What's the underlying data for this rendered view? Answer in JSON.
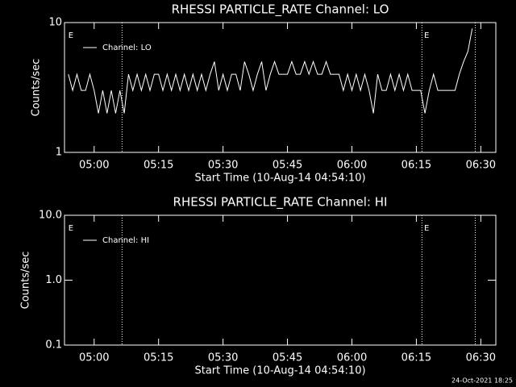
{
  "chart_data": [
    {
      "type": "line",
      "title": "RHESSI PARTICLE_RATE Channel: LO",
      "xlabel": "Start Time (10-Aug-14 04:54:10)",
      "ylabel": "Counts/sec",
      "log_y": true,
      "ylim": [
        1,
        10
      ],
      "yticks": [
        1,
        10
      ],
      "xlim": [
        293.1,
        393.5
      ],
      "xticks": [
        {
          "value": 300,
          "label": "05:00"
        },
        {
          "value": 315,
          "label": "05:15"
        },
        {
          "value": 330,
          "label": "05:30"
        },
        {
          "value": 345,
          "label": "05:45"
        },
        {
          "value": 360,
          "label": "06:00"
        },
        {
          "value": 375,
          "label": "06:15"
        },
        {
          "value": 390,
          "label": "06:30"
        }
      ],
      "vlines": [
        306.5,
        376.3,
        388.7
      ],
      "annotations": [
        {
          "text": "E",
          "x": 293.8
        },
        {
          "text": "E",
          "x": 376.6
        }
      ],
      "legend": "upper left",
      "x": [
        294,
        295,
        296,
        297,
        298,
        299,
        300,
        301,
        302,
        303,
        304,
        305,
        306,
        307,
        308,
        309,
        310,
        311,
        312,
        313,
        314,
        315,
        316,
        317,
        318,
        319,
        320,
        321,
        322,
        323,
        324,
        325,
        326,
        327,
        328,
        329,
        330,
        331,
        332,
        333,
        334,
        335,
        336,
        337,
        338,
        339,
        340,
        341,
        342,
        343,
        344,
        345,
        346,
        347,
        348,
        349,
        350,
        351,
        352,
        353,
        354,
        355,
        356,
        357,
        358,
        359,
        360,
        361,
        362,
        363,
        364,
        365,
        366,
        367,
        368,
        369,
        370,
        371,
        372,
        373,
        374,
        375,
        376,
        377,
        378,
        379,
        380,
        381,
        382,
        383,
        384,
        385,
        386,
        387,
        388
      ],
      "series": [
        {
          "name": "Channel: LO",
          "color": "#ffffff",
          "values": [
            4,
            3,
            4,
            3,
            3,
            4,
            3,
            2,
            3,
            2,
            3,
            2,
            3,
            2,
            4,
            3,
            4,
            3,
            4,
            3,
            4,
            4,
            3,
            4,
            3,
            4,
            3,
            4,
            3,
            4,
            3,
            4,
            3,
            4,
            5,
            3,
            4,
            3,
            4,
            4,
            3,
            5,
            4,
            3,
            4,
            5,
            3,
            4,
            5,
            4,
            4,
            4,
            5,
            4,
            4,
            5,
            4,
            5,
            4,
            4,
            5,
            4,
            4,
            4,
            3,
            4,
            3,
            4,
            3,
            4,
            3,
            2,
            4,
            3,
            3,
            4,
            3,
            4,
            3,
            4,
            3,
            3,
            3,
            2,
            3,
            4,
            3,
            3,
            3,
            3,
            3,
            4,
            5,
            6,
            9
          ]
        }
      ]
    },
    {
      "type": "line",
      "title": "RHESSI PARTICLE_RATE Channel: HI",
      "xlabel": "Start Time (10-Aug-14 04:54:10)",
      "ylabel": "Counts/sec",
      "log_y": true,
      "ylim": [
        0.1,
        10
      ],
      "yticks": [
        {
          "value": 0.1,
          "label": "0.1"
        },
        {
          "value": 1,
          "label": "1.0"
        },
        {
          "value": 10,
          "label": "10.0"
        }
      ],
      "xlim": [
        293.1,
        393.5
      ],
      "xticks": [
        {
          "value": 300,
          "label": "05:00"
        },
        {
          "value": 315,
          "label": "05:15"
        },
        {
          "value": 330,
          "label": "05:30"
        },
        {
          "value": 345,
          "label": "05:45"
        },
        {
          "value": 360,
          "label": "06:00"
        },
        {
          "value": 375,
          "label": "06:15"
        },
        {
          "value": 390,
          "label": "06:30"
        }
      ],
      "vlines": [
        306.5,
        376.3,
        388.7
      ],
      "annotations": [
        {
          "text": "E",
          "x": 293.8
        },
        {
          "text": "E",
          "x": 376.6
        }
      ],
      "legend": "upper left",
      "x": [],
      "series": [
        {
          "name": "Channel: HI",
          "color": "#ffffff",
          "values": []
        }
      ]
    }
  ],
  "footer": "24-Oct-2021 18:25"
}
